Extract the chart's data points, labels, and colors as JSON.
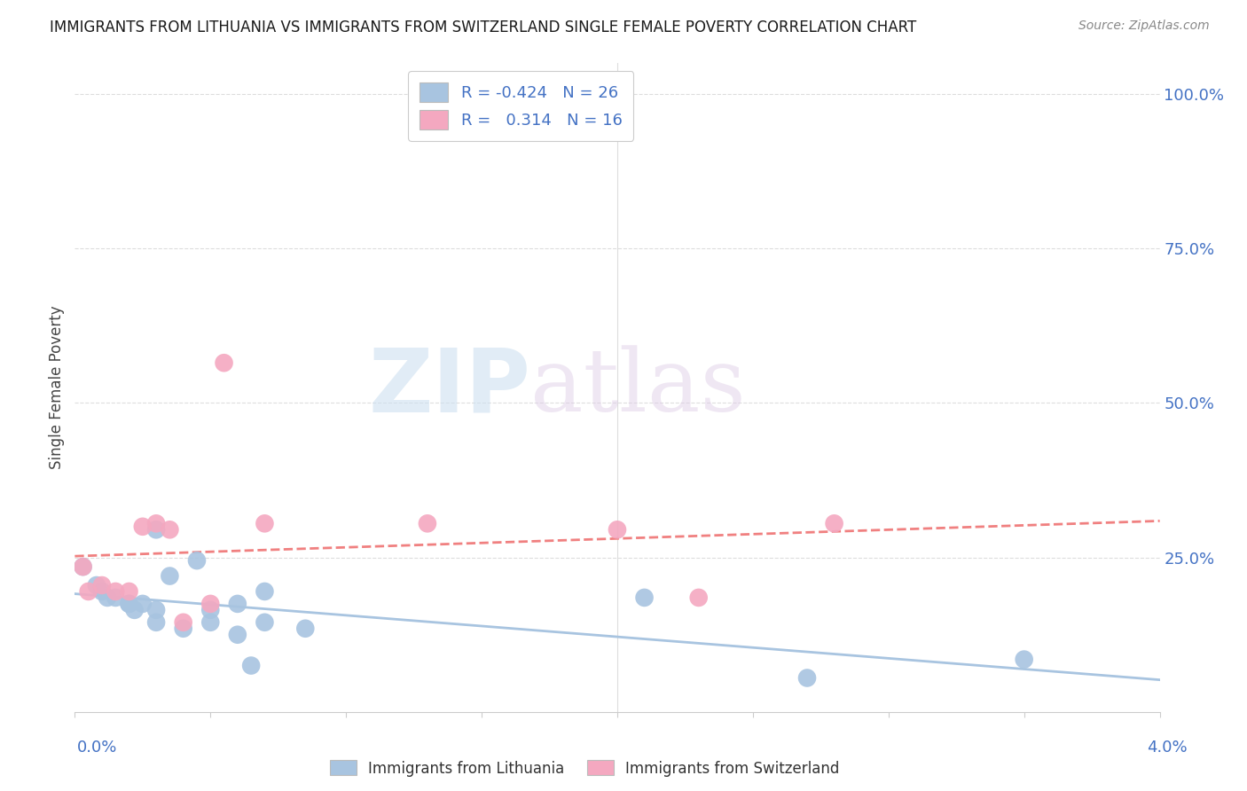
{
  "title": "IMMIGRANTS FROM LITHUANIA VS IMMIGRANTS FROM SWITZERLAND SINGLE FEMALE POVERTY CORRELATION CHART",
  "source": "Source: ZipAtlas.com",
  "ylabel": "Single Female Poverty",
  "right_yticks": [
    "100.0%",
    "75.0%",
    "50.0%",
    "25.0%"
  ],
  "right_ytick_vals": [
    1.0,
    0.75,
    0.5,
    0.25
  ],
  "legend_label1": "Immigrants from Lithuania",
  "legend_label2": "Immigrants from Switzerland",
  "R1": "-0.424",
  "N1": "26",
  "R2": "0.314",
  "N2": "16",
  "color_lithuania": "#a8c4e0",
  "color_switzerland": "#f4a8c0",
  "color_line_lithuania": "#a8c4e0",
  "color_line_switzerland": "#f08080",
  "color_text_blue": "#4472c4",
  "watermark_zip": "ZIP",
  "watermark_atlas": "atlas",
  "lithuania_x": [
    0.0003,
    0.0008,
    0.001,
    0.0012,
    0.0015,
    0.002,
    0.002,
    0.0022,
    0.0025,
    0.003,
    0.003,
    0.003,
    0.0035,
    0.004,
    0.0045,
    0.005,
    0.005,
    0.006,
    0.006,
    0.0065,
    0.007,
    0.007,
    0.0085,
    0.021,
    0.027,
    0.035
  ],
  "lithuania_y": [
    0.235,
    0.205,
    0.195,
    0.185,
    0.185,
    0.175,
    0.175,
    0.165,
    0.175,
    0.165,
    0.145,
    0.295,
    0.22,
    0.135,
    0.245,
    0.165,
    0.145,
    0.175,
    0.125,
    0.075,
    0.195,
    0.145,
    0.135,
    0.185,
    0.055,
    0.085
  ],
  "switzerland_x": [
    0.0003,
    0.0005,
    0.001,
    0.0015,
    0.002,
    0.0025,
    0.003,
    0.0035,
    0.004,
    0.005,
    0.0055,
    0.007,
    0.013,
    0.02,
    0.023,
    0.028
  ],
  "switzerland_y": [
    0.235,
    0.195,
    0.205,
    0.195,
    0.195,
    0.3,
    0.305,
    0.295,
    0.145,
    0.175,
    0.565,
    0.305,
    0.305,
    0.295,
    0.185,
    0.305
  ],
  "xlim": [
    0.0,
    0.04
  ],
  "ylim": [
    0.0,
    1.05
  ],
  "grid_color": "#dddddd",
  "spine_color": "#cccccc"
}
